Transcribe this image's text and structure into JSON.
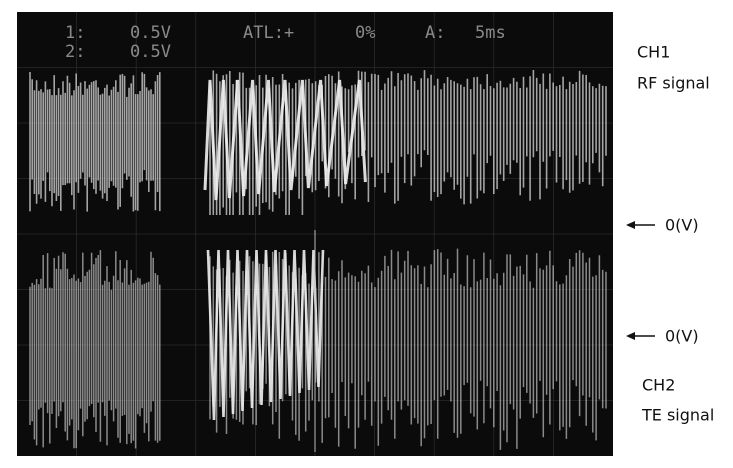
{
  "screen": {
    "ch1_index": "1:",
    "ch1_scale": "0.5V",
    "ch2_index": "2:",
    "ch2_scale": "0.5V",
    "trigger": "ATL:+",
    "trigger_level": "0%",
    "timebase_label": "A:",
    "timebase": "5ms"
  },
  "labels": {
    "ch1_name": "CH1",
    "ch1_signal": "RF signal",
    "ch1_zero": "0(V)",
    "ch2_zero": "0(V)",
    "ch2_name": "CH2",
    "ch2_signal": "TE signal"
  }
}
